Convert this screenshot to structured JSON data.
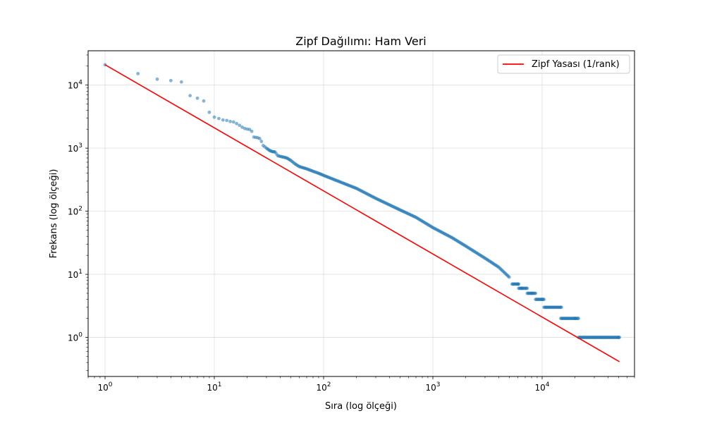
{
  "chart_data": {
    "type": "scatter",
    "title": "Zipf Dağılımı: Ham Veri",
    "xlabel": "Sıra (log ölçeği)",
    "ylabel": "Frekans (log ölçeği)",
    "xscale": "log",
    "yscale": "log",
    "xlim": [
      0.7,
      70000
    ],
    "ylim": [
      0.24,
      35000
    ],
    "grid": true,
    "legend_position": "top-right",
    "x_ticks": [
      {
        "base": "10",
        "exp": "0",
        "value": 1
      },
      {
        "base": "10",
        "exp": "1",
        "value": 10
      },
      {
        "base": "10",
        "exp": "2",
        "value": 100
      },
      {
        "base": "10",
        "exp": "3",
        "value": 1000
      },
      {
        "base": "10",
        "exp": "4",
        "value": 10000
      }
    ],
    "y_ticks": [
      {
        "base": "10",
        "exp": "0",
        "value": 1
      },
      {
        "base": "10",
        "exp": "1",
        "value": 10
      },
      {
        "base": "10",
        "exp": "2",
        "value": 100
      },
      {
        "base": "10",
        "exp": "3",
        "value": 1000
      },
      {
        "base": "10",
        "exp": "4",
        "value": 10000
      }
    ],
    "series": [
      {
        "kind": "scatter",
        "color": "#1f77b4",
        "points": [
          [
            1,
            21000
          ],
          [
            2,
            15200
          ],
          [
            3,
            12400
          ],
          [
            4,
            11800
          ],
          [
            5,
            11200
          ],
          [
            6,
            6800
          ],
          [
            7,
            6200
          ],
          [
            8,
            5600
          ],
          [
            9,
            3700
          ],
          [
            10,
            3100
          ],
          [
            11,
            2950
          ],
          [
            12,
            2800
          ],
          [
            13,
            2750
          ],
          [
            14,
            2650
          ],
          [
            15,
            2600
          ],
          [
            16,
            2450
          ],
          [
            17,
            2300
          ],
          [
            18,
            2150
          ],
          [
            19,
            2050
          ],
          [
            20,
            2000
          ],
          [
            21,
            1980
          ],
          [
            22,
            1850
          ],
          [
            23,
            1500
          ],
          [
            24,
            1480
          ],
          [
            25,
            1460
          ],
          [
            26,
            1420
          ],
          [
            27,
            1280
          ],
          [
            28,
            1100
          ],
          [
            29,
            1050
          ],
          [
            30,
            1000
          ],
          [
            32,
            920
          ],
          [
            34,
            880
          ],
          [
            36,
            870
          ],
          [
            38,
            760
          ],
          [
            40,
            740
          ],
          [
            43,
            720
          ],
          [
            46,
            700
          ],
          [
            50,
            640
          ],
          [
            55,
            560
          ],
          [
            60,
            510
          ],
          [
            70,
            470
          ],
          [
            80,
            430
          ],
          [
            90,
            400
          ],
          [
            100,
            370
          ],
          [
            150,
            280
          ],
          [
            200,
            230
          ],
          [
            300,
            160
          ],
          [
            500,
            105
          ],
          [
            700,
            80
          ],
          [
            1000,
            55
          ],
          [
            1500,
            38
          ],
          [
            2000,
            28
          ],
          [
            3000,
            18
          ],
          [
            4000,
            13
          ],
          [
            5000,
            9
          ],
          [
            6000,
            7
          ],
          [
            6500,
            6
          ],
          [
            8000,
            5
          ],
          [
            10000,
            4
          ],
          [
            15000,
            3
          ],
          [
            20000,
            2
          ],
          [
            50000,
            1
          ]
        ],
        "plateaus": [
          {
            "y": 7,
            "from": 5300,
            "to": 6100
          },
          {
            "y": 6,
            "from": 6100,
            "to": 7300
          },
          {
            "y": 5,
            "from": 7300,
            "to": 8700
          },
          {
            "y": 4,
            "from": 8700,
            "to": 10400
          },
          {
            "y": 3,
            "from": 10400,
            "to": 14800
          },
          {
            "y": 2,
            "from": 14800,
            "to": 21500
          },
          {
            "y": 1,
            "from": 21500,
            "to": 51000
          }
        ]
      },
      {
        "kind": "line",
        "name": "Zipf Yasası (1/rank)",
        "color": "#ff0000",
        "x": [
          1,
          51000
        ],
        "y": [
          21000,
          0.4118
        ]
      }
    ]
  }
}
